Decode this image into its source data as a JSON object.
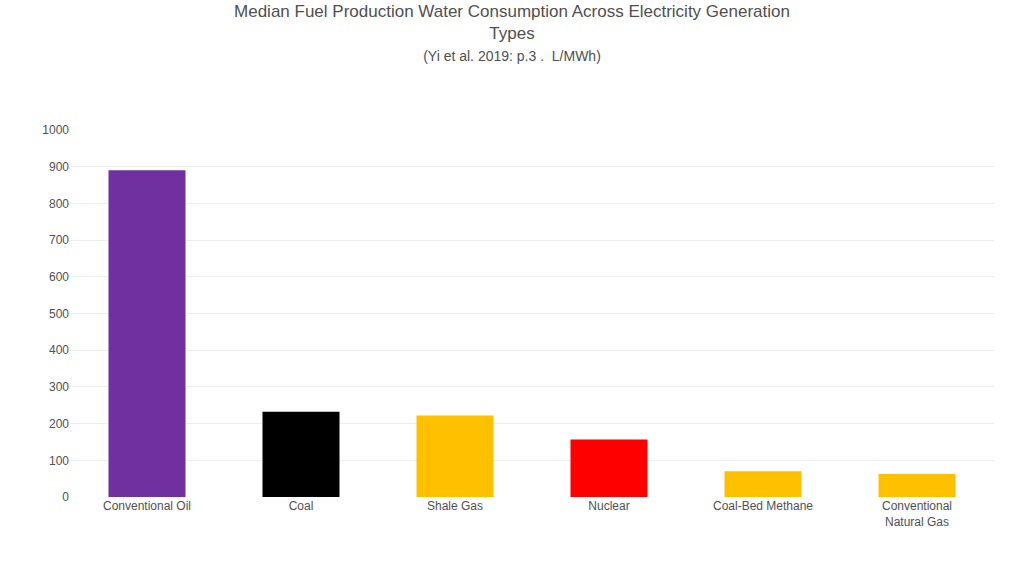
{
  "chart_data": {
    "type": "bar",
    "title": "Median Fuel Production Water Consumption Across Electricity Generation\nTypes",
    "subtitle": "(Yi et al. 2019: p.3 .  L/MWh)",
    "categories": [
      "Conventional Oil",
      "Coal",
      "Shale Gas",
      "Nuclear",
      "Coal-Bed Methane",
      "Conventional\nNatural Gas"
    ],
    "values": [
      890,
      232,
      222,
      157,
      70,
      63
    ],
    "colors": [
      "#7030a0",
      "#000000",
      "#ffc000",
      "#ff0000",
      "#ffc000",
      "#ffc000"
    ],
    "ylim": [
      0,
      1000
    ],
    "yticks": [
      0,
      100,
      200,
      300,
      400,
      500,
      600,
      700,
      800,
      900,
      1000
    ],
    "grid": true
  }
}
